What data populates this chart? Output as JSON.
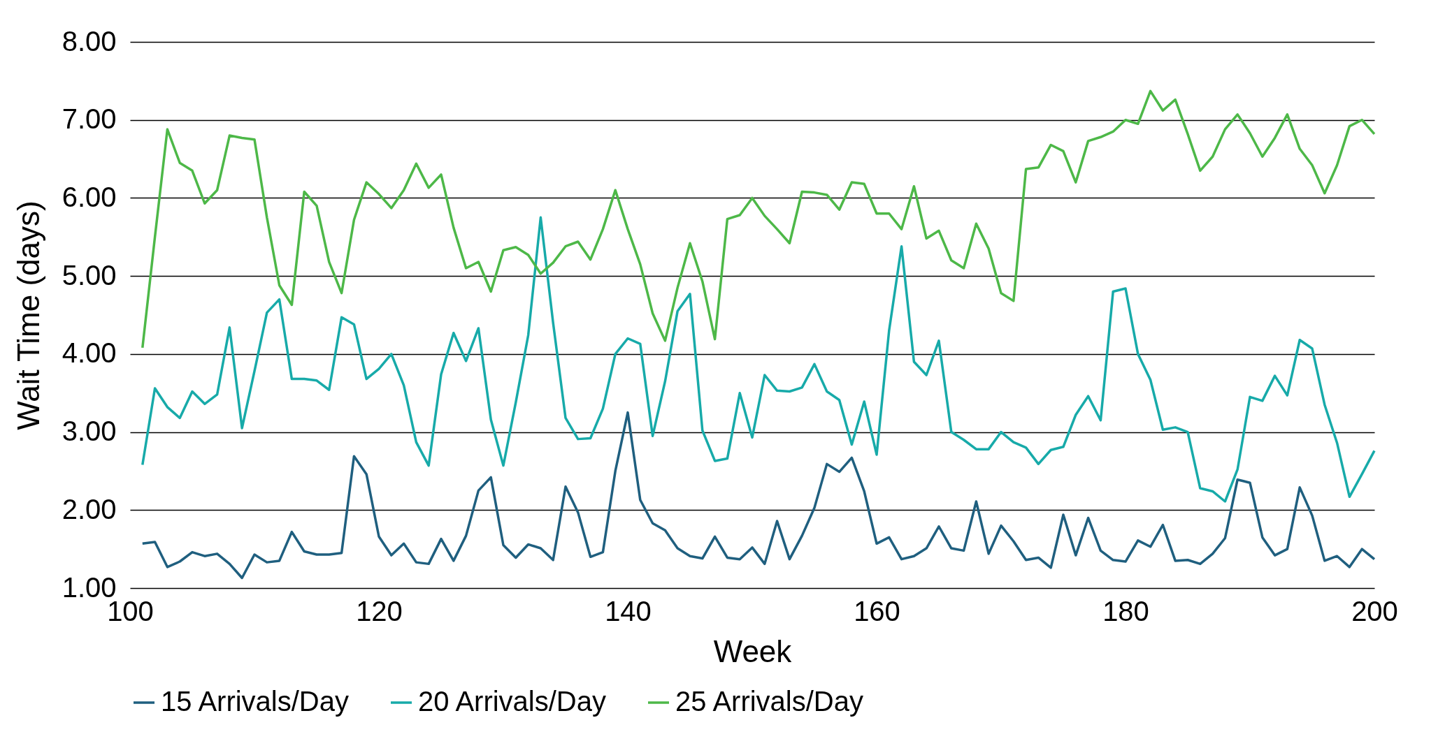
{
  "chart_data": {
    "type": "line",
    "xlabel": "Week",
    "ylabel": "Wait Time (days)",
    "x": [
      101,
      102,
      103,
      104,
      105,
      106,
      107,
      108,
      109,
      110,
      111,
      112,
      113,
      114,
      115,
      116,
      117,
      118,
      119,
      120,
      121,
      122,
      123,
      124,
      125,
      126,
      127,
      128,
      129,
      130,
      131,
      132,
      133,
      134,
      135,
      136,
      137,
      138,
      139,
      140,
      141,
      142,
      143,
      144,
      145,
      146,
      147,
      148,
      149,
      150,
      151,
      152,
      153,
      154,
      155,
      156,
      157,
      158,
      159,
      160,
      161,
      162,
      163,
      164,
      165,
      166,
      167,
      168,
      169,
      170,
      171,
      172,
      173,
      174,
      175,
      176,
      177,
      178,
      179,
      180,
      181,
      182,
      183,
      184,
      185,
      186,
      187,
      188,
      189,
      190,
      191,
      192,
      193,
      194,
      195,
      196,
      197,
      198,
      199,
      200
    ],
    "xlim": [
      100,
      200
    ],
    "xticks": [
      100,
      120,
      140,
      160,
      180,
      200
    ],
    "ylim": [
      1,
      8
    ],
    "yticks": [
      {
        "value": 1,
        "label": "1.00"
      },
      {
        "value": 2,
        "label": "2.00"
      },
      {
        "value": 3,
        "label": "3.00"
      },
      {
        "value": 4,
        "label": "4.00"
      },
      {
        "value": 5,
        "label": "5.00"
      },
      {
        "value": 6,
        "label": "6.00"
      },
      {
        "value": 7,
        "label": "7.00"
      },
      {
        "value": 8,
        "label": "8.00"
      }
    ],
    "grid": "y",
    "legend": "bottom",
    "marker": "none",
    "line_style": "solid",
    "series": [
      {
        "name": "15 Arrivals/Day",
        "color": "#1f5f7f",
        "values": [
          1.57,
          1.59,
          1.27,
          1.34,
          1.46,
          1.41,
          1.44,
          1.31,
          1.13,
          1.43,
          1.33,
          1.35,
          1.72,
          1.47,
          1.43,
          1.43,
          1.45,
          2.69,
          2.46,
          1.66,
          1.42,
          1.57,
          1.33,
          1.31,
          1.63,
          1.35,
          1.67,
          2.25,
          2.42,
          1.55,
          1.39,
          1.56,
          1.51,
          1.36,
          2.3,
          1.97,
          1.4,
          1.46,
          2.5,
          3.25,
          2.13,
          1.83,
          1.74,
          1.51,
          1.41,
          1.38,
          1.66,
          1.39,
          1.37,
          1.52,
          1.31,
          1.86,
          1.37,
          1.67,
          2.03,
          2.59,
          2.49,
          2.67,
          2.24,
          1.57,
          1.65,
          1.37,
          1.41,
          1.51,
          1.79,
          1.51,
          1.48,
          2.11,
          1.44,
          1.8,
          1.6,
          1.36,
          1.39,
          1.26,
          1.94,
          1.42,
          1.9,
          1.48,
          1.36,
          1.34,
          1.61,
          1.53,
          1.81,
          1.35,
          1.36,
          1.31,
          1.44,
          1.64,
          2.39,
          2.35,
          1.65,
          1.42,
          1.5,
          2.29,
          1.93,
          1.35,
          1.41,
          1.27,
          1.5,
          1.37
        ]
      },
      {
        "name": "20 Arrivals/Day",
        "color": "#17aaa9",
        "values": [
          2.58,
          3.56,
          3.32,
          3.18,
          3.52,
          3.36,
          3.48,
          4.34,
          3.05,
          3.78,
          4.53,
          4.7,
          3.68,
          3.68,
          3.66,
          3.54,
          4.47,
          4.38,
          3.68,
          3.81,
          4.0,
          3.6,
          2.87,
          2.57,
          3.74,
          4.27,
          3.91,
          4.33,
          3.16,
          2.57,
          3.38,
          4.24,
          5.75,
          4.4,
          3.18,
          2.91,
          2.92,
          3.3,
          4.0,
          4.2,
          4.13,
          2.95,
          3.65,
          4.55,
          4.77,
          3.02,
          2.63,
          2.66,
          3.5,
          2.93,
          3.73,
          3.53,
          3.52,
          3.57,
          3.87,
          3.52,
          3.41,
          2.84,
          3.39,
          2.71,
          4.3,
          5.38,
          3.9,
          3.73,
          4.17,
          3.0,
          2.9,
          2.78,
          2.78,
          3.0,
          2.87,
          2.8,
          2.59,
          2.77,
          2.81,
          3.22,
          3.46,
          3.15,
          4.8,
          4.84,
          4.0,
          3.67,
          3.03,
          3.06,
          3.0,
          2.28,
          2.24,
          2.11,
          2.52,
          3.45,
          3.4,
          3.72,
          3.47,
          4.18,
          4.07,
          3.35,
          2.86,
          2.17,
          2.46,
          2.76
        ]
      },
      {
        "name": "25 Arrivals/Day",
        "color": "#4db848",
        "values": [
          4.08,
          5.5,
          6.88,
          6.45,
          6.35,
          5.93,
          6.1,
          6.8,
          6.77,
          6.75,
          5.75,
          4.88,
          4.63,
          6.08,
          5.9,
          5.18,
          4.78,
          5.72,
          6.2,
          6.05,
          5.87,
          6.1,
          6.44,
          6.13,
          6.3,
          5.62,
          5.1,
          5.18,
          4.8,
          5.33,
          5.37,
          5.27,
          5.03,
          5.17,
          5.38,
          5.44,
          5.21,
          5.6,
          6.1,
          5.6,
          5.15,
          4.52,
          4.17,
          4.85,
          5.42,
          4.93,
          4.19,
          5.73,
          5.78,
          6.0,
          5.77,
          5.6,
          5.42,
          6.08,
          6.07,
          6.04,
          5.85,
          6.2,
          6.18,
          5.8,
          5.8,
          5.6,
          6.15,
          5.48,
          5.58,
          5.2,
          5.1,
          5.67,
          5.35,
          4.78,
          4.68,
          6.37,
          6.39,
          6.68,
          6.6,
          6.2,
          6.73,
          6.78,
          6.85,
          7.0,
          6.95,
          7.37,
          7.12,
          7.26,
          6.82,
          6.35,
          6.53,
          6.88,
          7.07,
          6.83,
          6.53,
          6.77,
          7.07,
          6.63,
          6.42,
          6.06,
          6.42,
          6.92,
          7.0,
          6.82
        ]
      }
    ]
  }
}
